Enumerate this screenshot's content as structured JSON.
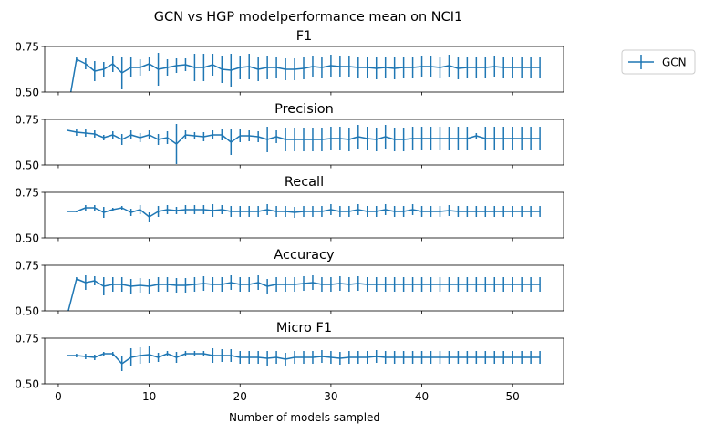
{
  "figure": {
    "suptitle": "GCN vs HGP modelperformance mean on NCI1",
    "xlabel": "Number of models sampled",
    "line_color": "#1f77b4"
  },
  "legend": {
    "label": "GCN",
    "placement": "upper-right-outside"
  },
  "chart_data": [
    {
      "type": "line",
      "title": "F1",
      "metric": "F1",
      "xlim": [
        -1.5,
        55.6
      ],
      "ylim": [
        0.5,
        0.75
      ],
      "yticks": [
        0.5,
        0.75
      ],
      "ytick_labels": [
        "0.50",
        "0.75"
      ],
      "xticks": [
        0,
        10,
        20,
        30,
        40,
        50
      ],
      "xtick_labels": [
        "0",
        "10",
        "20",
        "30",
        "40",
        "50"
      ],
      "grid": false,
      "series": [
        {
          "name": "GCN",
          "x": [
            1,
            2,
            3,
            4,
            5,
            6,
            7,
            8,
            9,
            10,
            11,
            12,
            13,
            14,
            15,
            16,
            17,
            18,
            19,
            20,
            21,
            22,
            23,
            24,
            25,
            26,
            27,
            28,
            29,
            30,
            31,
            32,
            33,
            34,
            35,
            36,
            37,
            38,
            39,
            40,
            41,
            42,
            43,
            44,
            45,
            46,
            47,
            48,
            49,
            50,
            51,
            52,
            53
          ],
          "y": [
            0.39,
            0.68,
            0.655,
            0.615,
            0.625,
            0.655,
            0.605,
            0.635,
            0.635,
            0.655,
            0.625,
            0.635,
            0.645,
            0.65,
            0.635,
            0.635,
            0.65,
            0.625,
            0.62,
            0.635,
            0.64,
            0.625,
            0.635,
            0.635,
            0.625,
            0.625,
            0.63,
            0.64,
            0.635,
            0.645,
            0.64,
            0.64,
            0.635,
            0.635,
            0.63,
            0.635,
            0.63,
            0.635,
            0.635,
            0.64,
            0.64,
            0.635,
            0.645,
            0.63,
            0.635,
            0.635,
            0.635,
            0.64,
            0.635,
            0.635,
            0.635,
            0.635,
            0.635
          ],
          "err": [
            0,
            0.015,
            0.03,
            0.055,
            0.04,
            0.045,
            0.09,
            0.055,
            0.045,
            0.04,
            0.09,
            0.045,
            0.04,
            0.035,
            0.075,
            0.075,
            0.06,
            0.075,
            0.09,
            0.065,
            0.07,
            0.065,
            0.065,
            0.06,
            0.06,
            0.06,
            0.06,
            0.06,
            0.06,
            0.06,
            0.06,
            0.06,
            0.06,
            0.06,
            0.06,
            0.06,
            0.06,
            0.06,
            0.06,
            0.06,
            0.06,
            0.06,
            0.06,
            0.06,
            0.06,
            0.06,
            0.06,
            0.06,
            0.06,
            0.06,
            0.06,
            0.06,
            0.06
          ]
        }
      ]
    },
    {
      "type": "line",
      "title": "Precision",
      "metric": "Precision",
      "xlim": [
        -1.5,
        55.6
      ],
      "ylim": [
        0.5,
        0.75
      ],
      "yticks": [
        0.5,
        0.75
      ],
      "ytick_labels": [
        "0.50",
        "0.75"
      ],
      "xticks": [
        0,
        10,
        20,
        30,
        40,
        50
      ],
      "xtick_labels": [
        "0",
        "10",
        "20",
        "30",
        "40",
        "50"
      ],
      "grid": false,
      "series": [
        {
          "name": "GCN",
          "x": [
            1,
            2,
            3,
            4,
            5,
            6,
            7,
            8,
            9,
            10,
            11,
            12,
            13,
            14,
            15,
            16,
            17,
            18,
            19,
            20,
            21,
            22,
            23,
            24,
            25,
            26,
            27,
            28,
            29,
            30,
            31,
            32,
            33,
            34,
            35,
            36,
            37,
            38,
            39,
            40,
            41,
            42,
            43,
            44,
            45,
            46,
            47,
            48,
            49,
            50,
            51,
            52,
            53
          ],
          "y": [
            0.69,
            0.68,
            0.675,
            0.67,
            0.65,
            0.665,
            0.64,
            0.665,
            0.65,
            0.665,
            0.64,
            0.65,
            0.615,
            0.665,
            0.66,
            0.655,
            0.665,
            0.665,
            0.625,
            0.66,
            0.66,
            0.655,
            0.64,
            0.655,
            0.64,
            0.64,
            0.64,
            0.64,
            0.64,
            0.645,
            0.645,
            0.64,
            0.655,
            0.645,
            0.64,
            0.655,
            0.64,
            0.64,
            0.645,
            0.645,
            0.645,
            0.645,
            0.645,
            0.645,
            0.645,
            0.66,
            0.645,
            0.645,
            0.645,
            0.645,
            0.645,
            0.645,
            0.645
          ],
          "err": [
            0,
            0.02,
            0.02,
            0.02,
            0.015,
            0.02,
            0.03,
            0.025,
            0.025,
            0.025,
            0.03,
            0.035,
            0.11,
            0.025,
            0.02,
            0.025,
            0.025,
            0.03,
            0.07,
            0.035,
            0.03,
            0.03,
            0.07,
            0.035,
            0.065,
            0.065,
            0.065,
            0.065,
            0.065,
            0.065,
            0.065,
            0.065,
            0.065,
            0.065,
            0.065,
            0.065,
            0.065,
            0.065,
            0.065,
            0.065,
            0.065,
            0.065,
            0.065,
            0.065,
            0.065,
            0.015,
            0.065,
            0.065,
            0.065,
            0.065,
            0.065,
            0.065,
            0.065
          ]
        }
      ]
    },
    {
      "type": "line",
      "title": "Recall",
      "metric": "Recall",
      "xlim": [
        -1.5,
        55.6
      ],
      "ylim": [
        0.5,
        0.75
      ],
      "yticks": [
        0.5,
        0.75
      ],
      "ytick_labels": [
        "0.50",
        "0.75"
      ],
      "xticks": [
        0,
        10,
        20,
        30,
        40,
        50
      ],
      "xtick_labels": [
        "0",
        "10",
        "20",
        "30",
        "40",
        "50"
      ],
      "grid": false,
      "series": [
        {
          "name": "GCN",
          "x": [
            1,
            2,
            3,
            4,
            5,
            6,
            7,
            8,
            9,
            10,
            11,
            12,
            13,
            14,
            15,
            16,
            17,
            18,
            19,
            20,
            21,
            22,
            23,
            24,
            25,
            26,
            27,
            28,
            29,
            30,
            31,
            32,
            33,
            34,
            35,
            36,
            37,
            38,
            39,
            40,
            41,
            42,
            43,
            44,
            45,
            46,
            47,
            48,
            49,
            50,
            51,
            52,
            53
          ],
          "y": [
            0.645,
            0.645,
            0.665,
            0.665,
            0.64,
            0.655,
            0.665,
            0.64,
            0.655,
            0.615,
            0.645,
            0.655,
            0.65,
            0.655,
            0.655,
            0.655,
            0.65,
            0.655,
            0.645,
            0.645,
            0.645,
            0.645,
            0.655,
            0.645,
            0.645,
            0.64,
            0.645,
            0.645,
            0.645,
            0.655,
            0.645,
            0.645,
            0.655,
            0.645,
            0.645,
            0.655,
            0.645,
            0.645,
            0.655,
            0.645,
            0.645,
            0.645,
            0.65,
            0.645,
            0.645,
            0.645,
            0.645,
            0.645,
            0.645,
            0.645,
            0.645,
            0.645,
            0.645
          ],
          "err": [
            0,
            0.005,
            0.015,
            0.015,
            0.03,
            0.01,
            0.01,
            0.02,
            0.025,
            0.025,
            0.03,
            0.025,
            0.02,
            0.025,
            0.025,
            0.025,
            0.035,
            0.025,
            0.03,
            0.03,
            0.03,
            0.03,
            0.03,
            0.03,
            0.03,
            0.03,
            0.03,
            0.03,
            0.03,
            0.03,
            0.03,
            0.03,
            0.03,
            0.03,
            0.03,
            0.03,
            0.03,
            0.03,
            0.03,
            0.03,
            0.03,
            0.03,
            0.03,
            0.03,
            0.03,
            0.03,
            0.03,
            0.03,
            0.03,
            0.03,
            0.03,
            0.03,
            0.03
          ]
        }
      ]
    },
    {
      "type": "line",
      "title": "Accuracy",
      "metric": "Accuracy",
      "xlim": [
        -1.5,
        55.6
      ],
      "ylim": [
        0.5,
        0.75
      ],
      "yticks": [
        0.5,
        0.75
      ],
      "ytick_labels": [
        "0.50",
        "0.75"
      ],
      "xticks": [
        0,
        10,
        20,
        30,
        40,
        50
      ],
      "xtick_labels": [
        "0",
        "10",
        "20",
        "30",
        "40",
        "50"
      ],
      "grid": false,
      "series": [
        {
          "name": "GCN",
          "x": [
            1,
            2,
            3,
            4,
            5,
            6,
            7,
            8,
            9,
            10,
            11,
            12,
            13,
            14,
            15,
            16,
            17,
            18,
            19,
            20,
            21,
            22,
            23,
            24,
            25,
            26,
            27,
            28,
            29,
            30,
            31,
            32,
            33,
            34,
            35,
            36,
            37,
            38,
            39,
            40,
            41,
            42,
            43,
            44,
            45,
            46,
            47,
            48,
            49,
            50,
            51,
            52,
            53
          ],
          "y": [
            0.48,
            0.675,
            0.655,
            0.665,
            0.635,
            0.645,
            0.645,
            0.635,
            0.64,
            0.635,
            0.645,
            0.645,
            0.64,
            0.64,
            0.645,
            0.65,
            0.645,
            0.645,
            0.655,
            0.645,
            0.645,
            0.655,
            0.635,
            0.645,
            0.645,
            0.645,
            0.65,
            0.655,
            0.645,
            0.645,
            0.65,
            0.645,
            0.65,
            0.645,
            0.645,
            0.645,
            0.645,
            0.645,
            0.645,
            0.645,
            0.645,
            0.645,
            0.645,
            0.645,
            0.645,
            0.645,
            0.645,
            0.645,
            0.645,
            0.645,
            0.645,
            0.645,
            0.645
          ],
          "err": [
            0,
            0.01,
            0.04,
            0.025,
            0.05,
            0.04,
            0.04,
            0.04,
            0.04,
            0.04,
            0.04,
            0.04,
            0.04,
            0.04,
            0.04,
            0.04,
            0.04,
            0.04,
            0.04,
            0.04,
            0.04,
            0.04,
            0.04,
            0.04,
            0.04,
            0.04,
            0.04,
            0.04,
            0.04,
            0.04,
            0.04,
            0.04,
            0.04,
            0.04,
            0.04,
            0.04,
            0.04,
            0.04,
            0.04,
            0.04,
            0.04,
            0.04,
            0.04,
            0.04,
            0.04,
            0.04,
            0.04,
            0.04,
            0.04,
            0.04,
            0.04,
            0.04,
            0.04
          ]
        }
      ]
    },
    {
      "type": "line",
      "title": "Micro F1",
      "metric": "Micro F1",
      "xlim": [
        -1.5,
        55.6
      ],
      "ylim": [
        0.5,
        0.75
      ],
      "yticks": [
        0.5,
        0.75
      ],
      "ytick_labels": [
        "0.50",
        "0.75"
      ],
      "xticks": [
        0,
        10,
        20,
        30,
        40,
        50
      ],
      "xtick_labels": [
        "0",
        "10",
        "20",
        "30",
        "40",
        "50"
      ],
      "grid": false,
      "series": [
        {
          "name": "GCN",
          "x": [
            1,
            2,
            3,
            4,
            5,
            6,
            7,
            8,
            9,
            10,
            11,
            12,
            13,
            14,
            15,
            16,
            17,
            18,
            19,
            20,
            21,
            22,
            23,
            24,
            25,
            26,
            27,
            28,
            29,
            30,
            31,
            32,
            33,
            34,
            35,
            36,
            37,
            38,
            39,
            40,
            41,
            42,
            43,
            44,
            45,
            46,
            47,
            48,
            49,
            50,
            51,
            52,
            53
          ],
          "y": [
            0.655,
            0.655,
            0.65,
            0.645,
            0.665,
            0.665,
            0.61,
            0.645,
            0.655,
            0.66,
            0.645,
            0.665,
            0.645,
            0.665,
            0.665,
            0.665,
            0.655,
            0.655,
            0.655,
            0.645,
            0.645,
            0.645,
            0.64,
            0.645,
            0.635,
            0.645,
            0.645,
            0.645,
            0.65,
            0.645,
            0.64,
            0.645,
            0.645,
            0.645,
            0.65,
            0.645,
            0.645,
            0.645,
            0.645,
            0.645,
            0.645,
            0.645,
            0.645,
            0.645,
            0.645,
            0.645,
            0.645,
            0.645,
            0.645,
            0.645,
            0.645,
            0.645,
            0.645
          ],
          "err": [
            0,
            0.01,
            0.015,
            0.015,
            0.01,
            0.01,
            0.04,
            0.05,
            0.045,
            0.045,
            0.025,
            0.015,
            0.03,
            0.015,
            0.015,
            0.015,
            0.04,
            0.035,
            0.035,
            0.035,
            0.035,
            0.035,
            0.04,
            0.035,
            0.035,
            0.035,
            0.035,
            0.035,
            0.035,
            0.035,
            0.035,
            0.035,
            0.035,
            0.035,
            0.035,
            0.035,
            0.035,
            0.035,
            0.035,
            0.035,
            0.035,
            0.035,
            0.035,
            0.035,
            0.035,
            0.035,
            0.035,
            0.035,
            0.035,
            0.035,
            0.035,
            0.035,
            0.035
          ]
        }
      ]
    }
  ]
}
